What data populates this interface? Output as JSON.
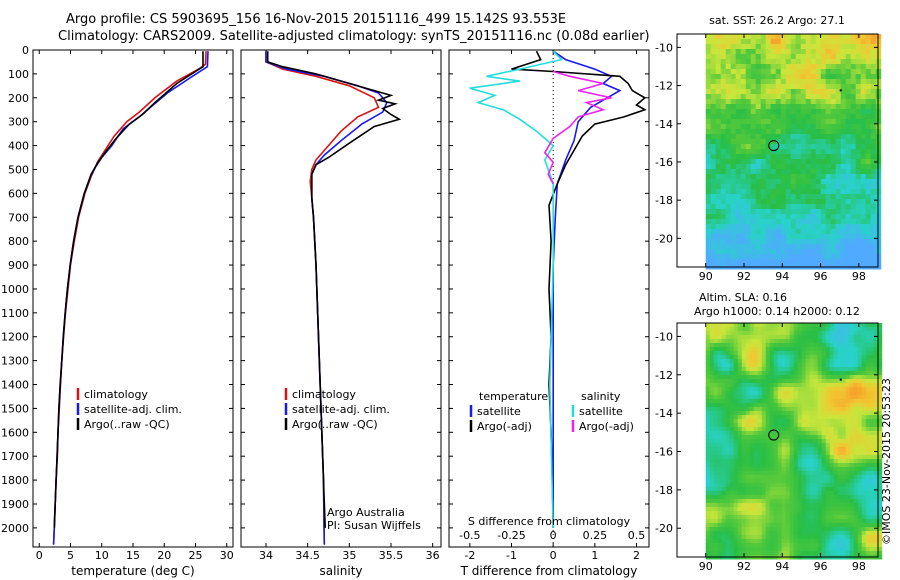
{
  "header": {
    "line1": "Argo profile: CS 5903695_156 16-Nov-2015 20151116_499 15.142S 93.553E",
    "line2": "Climatology: CARS2009. Satellite-adjusted climatology: synTS_20151116.nc (0.08d earlier)"
  },
  "side_label": "©IMOS 23-Nov-2015 20:53:23",
  "colors": {
    "climatology": "#dd1111",
    "satellite": "#1a1aee",
    "argo": "#000000",
    "sal_sat": "#22dddd",
    "sal_argo": "#ee22ee"
  },
  "chart_data": [
    {
      "type": "line",
      "id": "temperature",
      "xlabel": "temperature (deg C)",
      "ylabel": "",
      "xlim": [
        -1,
        31
      ],
      "ylim": [
        2080,
        0
      ],
      "xticks": [
        0,
        5,
        10,
        15,
        20,
        25,
        30
      ],
      "yticks": [
        0,
        100,
        200,
        300,
        400,
        500,
        600,
        700,
        800,
        900,
        1000,
        1100,
        1200,
        1300,
        1400,
        1500,
        1600,
        1700,
        1800,
        1900,
        2000
      ],
      "legend": [
        "climatology",
        "satellite-adj. clim.",
        "Argo(..raw -QC)"
      ],
      "series": [
        {
          "name": "climatology",
          "color": "#dd1111",
          "points": [
            [
              26.7,
              5
            ],
            [
              26.6,
              60
            ],
            [
              25.5,
              80
            ],
            [
              22,
              130
            ],
            [
              18.5,
              200
            ],
            [
              16,
              260
            ],
            [
              14,
              300
            ],
            [
              12,
              360
            ],
            [
              10.5,
              420
            ],
            [
              9.3,
              470
            ],
            [
              8.3,
              530
            ],
            [
              7.3,
              600
            ],
            [
              6.3,
              700
            ],
            [
              5.6,
              800
            ],
            [
              5.0,
              900
            ],
            [
              4.6,
              1000
            ],
            [
              4.2,
              1100
            ],
            [
              3.9,
              1200
            ],
            [
              3.6,
              1300
            ],
            [
              3.4,
              1400
            ],
            [
              3.2,
              1500
            ],
            [
              3.0,
              1600
            ],
            [
              2.9,
              1700
            ],
            [
              2.7,
              1800
            ],
            [
              2.55,
              1900
            ],
            [
              2.4,
              2000
            ],
            [
              2.3,
              2070
            ]
          ]
        },
        {
          "name": "satellite-adj. clim.",
          "color": "#1a1aee",
          "points": [
            [
              27.0,
              5
            ],
            [
              26.9,
              70
            ],
            [
              24.5,
              110
            ],
            [
              20.5,
              180
            ],
            [
              17.8,
              240
            ],
            [
              16,
              280
            ],
            [
              13.4,
              330
            ],
            [
              11.6,
              400
            ],
            [
              10,
              450
            ],
            [
              9.0,
              490
            ],
            [
              8.2,
              530
            ],
            [
              7.2,
              600
            ],
            [
              6.2,
              700
            ],
            [
              5.5,
              800
            ],
            [
              4.95,
              900
            ],
            [
              4.5,
              1000
            ],
            [
              4.15,
              1100
            ],
            [
              3.85,
              1200
            ],
            [
              3.6,
              1300
            ],
            [
              3.35,
              1400
            ],
            [
              3.15,
              1500
            ],
            [
              3.0,
              1600
            ],
            [
              2.85,
              1700
            ],
            [
              2.7,
              1800
            ],
            [
              2.55,
              1900
            ],
            [
              2.4,
              2000
            ],
            [
              2.3,
              2070
            ]
          ]
        },
        {
          "name": "Argo(..raw -QC)",
          "color": "#000000",
          "points": [
            [
              26.2,
              5
            ],
            [
              26.2,
              70
            ],
            [
              25,
              90
            ],
            [
              22,
              140
            ],
            [
              18.5,
              220
            ],
            [
              16.5,
              270
            ],
            [
              14.4,
              310
            ],
            [
              12.3,
              370
            ],
            [
              10.5,
              430
            ],
            [
              9.4,
              470
            ],
            [
              8.3,
              520
            ],
            [
              7.2,
              600
            ],
            [
              6.2,
              700
            ],
            [
              5.5,
              800
            ],
            [
              4.95,
              900
            ],
            [
              4.5,
              1000
            ],
            [
              4.15,
              1100
            ],
            [
              3.85,
              1200
            ],
            [
              3.6,
              1300
            ],
            [
              3.35,
              1400
            ],
            [
              3.15,
              1500
            ],
            [
              3.0,
              1600
            ],
            [
              2.85,
              1700
            ],
            [
              2.7,
              1800
            ],
            [
              2.55,
              1900
            ],
            [
              2.4,
              2000
            ]
          ]
        }
      ]
    },
    {
      "type": "line",
      "id": "salinity",
      "xlabel": "salinity",
      "xlim": [
        33.7,
        36.1
      ],
      "ylim": [
        2080,
        0
      ],
      "xticks": [
        34,
        34.5,
        35,
        35.5,
        36
      ],
      "legend": [
        "climatology",
        "satellite-adj. clim.",
        "Argo(..raw -QC)"
      ],
      "annotation": [
        "Argo Australia",
        "PI: Susan Wijffels"
      ],
      "series": [
        {
          "name": "climatology",
          "color": "#dd1111",
          "points": [
            [
              34.0,
              5
            ],
            [
              34.0,
              50
            ],
            [
              34.2,
              80
            ],
            [
              34.6,
              110
            ],
            [
              35.0,
              150
            ],
            [
              35.3,
              200
            ],
            [
              35.35,
              240
            ],
            [
              35.1,
              280
            ],
            [
              34.9,
              340
            ],
            [
              34.75,
              400
            ],
            [
              34.6,
              460
            ],
            [
              34.55,
              500
            ],
            [
              34.53,
              550
            ],
            [
              34.55,
              620
            ],
            [
              34.57,
              700
            ],
            [
              34.6,
              900
            ],
            [
              34.63,
              1200
            ],
            [
              34.66,
              1500
            ],
            [
              34.69,
              1800
            ],
            [
              34.7,
              2070
            ]
          ]
        },
        {
          "name": "satellite-adj. clim.",
          "color": "#1a1aee",
          "points": [
            [
              34.0,
              5
            ],
            [
              34.0,
              50
            ],
            [
              34.25,
              80
            ],
            [
              34.7,
              110
            ],
            [
              35.1,
              150
            ],
            [
              35.35,
              180
            ],
            [
              35.45,
              220
            ],
            [
              35.4,
              260
            ],
            [
              35.15,
              310
            ],
            [
              34.9,
              380
            ],
            [
              34.7,
              440
            ],
            [
              34.6,
              480
            ],
            [
              34.55,
              520
            ],
            [
              34.55,
              620
            ],
            [
              34.57,
              700
            ],
            [
              34.6,
              900
            ],
            [
              34.63,
              1200
            ],
            [
              34.66,
              1500
            ],
            [
              34.69,
              1800
            ],
            [
              34.7,
              2070
            ]
          ]
        },
        {
          "name": "Argo(..raw -QC)",
          "color": "#000000",
          "points": [
            [
              34.02,
              5
            ],
            [
              34.02,
              50
            ],
            [
              34.2,
              70
            ],
            [
              34.6,
              100
            ],
            [
              35.0,
              140
            ],
            [
              35.3,
              170
            ],
            [
              35.5,
              190
            ],
            [
              35.35,
              210
            ],
            [
              35.55,
              225
            ],
            [
              35.4,
              245
            ],
            [
              35.5,
              270
            ],
            [
              35.6,
              290
            ],
            [
              35.3,
              320
            ],
            [
              35.0,
              390
            ],
            [
              34.75,
              450
            ],
            [
              34.6,
              480
            ],
            [
              34.55,
              520
            ],
            [
              34.55,
              620
            ],
            [
              34.57,
              700
            ],
            [
              34.6,
              900
            ],
            [
              34.63,
              1200
            ],
            [
              34.66,
              1500
            ],
            [
              34.69,
              1800
            ],
            [
              34.71,
              2000
            ]
          ]
        }
      ]
    },
    {
      "type": "line",
      "id": "differences",
      "xlabel": "T difference from climatology",
      "xlabel_top": "S difference from climatology",
      "xlim": [
        -2.5,
        2.3
      ],
      "xlim_s": [
        -0.625,
        0.575
      ],
      "ylim": [
        2080,
        0
      ],
      "xticks": [
        -2,
        -1,
        0,
        1,
        2
      ],
      "xticks_s": [
        -0.5,
        -0.25,
        0,
        0.25,
        0.5
      ],
      "legend_temperature_title": "temperature",
      "legend_salinity_title": "salinity",
      "legend": [
        "satellite",
        "Argo(-adj)",
        "satellite",
        "Argo(-adj)"
      ],
      "series": [
        {
          "name": "temperature satellite",
          "color": "#1a1aee",
          "axis": "T",
          "points": [
            [
              0,
              5
            ],
            [
              0.3,
              40
            ],
            [
              1,
              80
            ],
            [
              1.4,
              110
            ],
            [
              1.2,
              140
            ],
            [
              1.6,
              170
            ],
            [
              1.3,
              200
            ],
            [
              0.9,
              240
            ],
            [
              0.6,
              300
            ],
            [
              0.5,
              380
            ],
            [
              0.3,
              460
            ],
            [
              0.1,
              560
            ],
            [
              0.05,
              700
            ],
            [
              0,
              900
            ],
            [
              0,
              2000
            ]
          ]
        },
        {
          "name": "temperature Argo(-adj)",
          "color": "#000000",
          "axis": "T",
          "points": [
            [
              -0.4,
              5
            ],
            [
              -0.3,
              40
            ],
            [
              -1,
              80
            ],
            [
              0,
              90
            ],
            [
              1.6,
              110
            ],
            [
              1.8,
              140
            ],
            [
              1.9,
              170
            ],
            [
              2.2,
              200
            ],
            [
              2.0,
              230
            ],
            [
              2.2,
              250
            ],
            [
              1.7,
              280
            ],
            [
              1.0,
              310
            ],
            [
              0.7,
              360
            ],
            [
              0.5,
              420
            ],
            [
              0.3,
              480
            ],
            [
              0.1,
              560
            ],
            [
              -0.1,
              650
            ],
            [
              -0.05,
              800
            ],
            [
              -0.1,
              1000
            ],
            [
              -0.05,
              1200
            ],
            [
              -0.1,
              1400
            ],
            [
              -0.05,
              1600
            ],
            [
              -0.02,
              1800
            ],
            [
              0,
              2000
            ]
          ]
        },
        {
          "name": "salinity satellite",
          "color": "#22dddd",
          "axis": "S",
          "points": [
            [
              0,
              5
            ],
            [
              0.05,
              40
            ],
            [
              -0.2,
              80
            ],
            [
              -0.4,
              110
            ],
            [
              -0.2,
              130
            ],
            [
              -0.5,
              160
            ],
            [
              -0.35,
              190
            ],
            [
              -0.45,
              220
            ],
            [
              -0.3,
              250
            ],
            [
              -0.2,
              290
            ],
            [
              -0.1,
              340
            ],
            [
              0,
              400
            ],
            [
              -0.05,
              460
            ],
            [
              0,
              560
            ],
            [
              0,
              900
            ],
            [
              -0.02,
              1400
            ],
            [
              0,
              2000
            ]
          ]
        },
        {
          "name": "salinity Argo(-adj)",
          "color": "#ee22ee",
          "axis": "S",
          "points": [
            [
              0,
              90
            ],
            [
              0.1,
              110
            ],
            [
              0.3,
              140
            ],
            [
              0.15,
              170
            ],
            [
              0.35,
              200
            ],
            [
              0.2,
              220
            ],
            [
              0.3,
              250
            ],
            [
              0.15,
              280
            ],
            [
              0.1,
              320
            ],
            [
              0,
              370
            ],
            [
              -0.05,
              430
            ],
            [
              0,
              470
            ],
            [
              -0.03,
              520
            ],
            [
              0,
              560
            ]
          ]
        }
      ]
    },
    {
      "type": "heatmap",
      "id": "sst_map",
      "title": "sat. SST: 26.2 Argo: 27.1",
      "xlim": [
        88.5,
        99
      ],
      "ylim": [
        -21.5,
        -9.3
      ],
      "xticks": [
        90,
        92,
        94,
        96,
        98
      ],
      "yticks": [
        -10,
        -12,
        -14,
        -16,
        -18,
        -20
      ],
      "argo_position": [
        93.553,
        -15.142
      ]
    },
    {
      "type": "heatmap",
      "id": "sla_map",
      "title": "Altim. SLA: 0.16",
      "subtitle": "Argo h1000: 0.14 h2000: 0.12",
      "xlim": [
        88.5,
        99
      ],
      "ylim": [
        -21.5,
        -9.3
      ],
      "xticks": [
        90,
        92,
        94,
        96,
        98
      ],
      "yticks": [
        -10,
        -12,
        -14,
        -16,
        -18,
        -20
      ],
      "argo_position": [
        93.553,
        -15.142
      ]
    }
  ]
}
